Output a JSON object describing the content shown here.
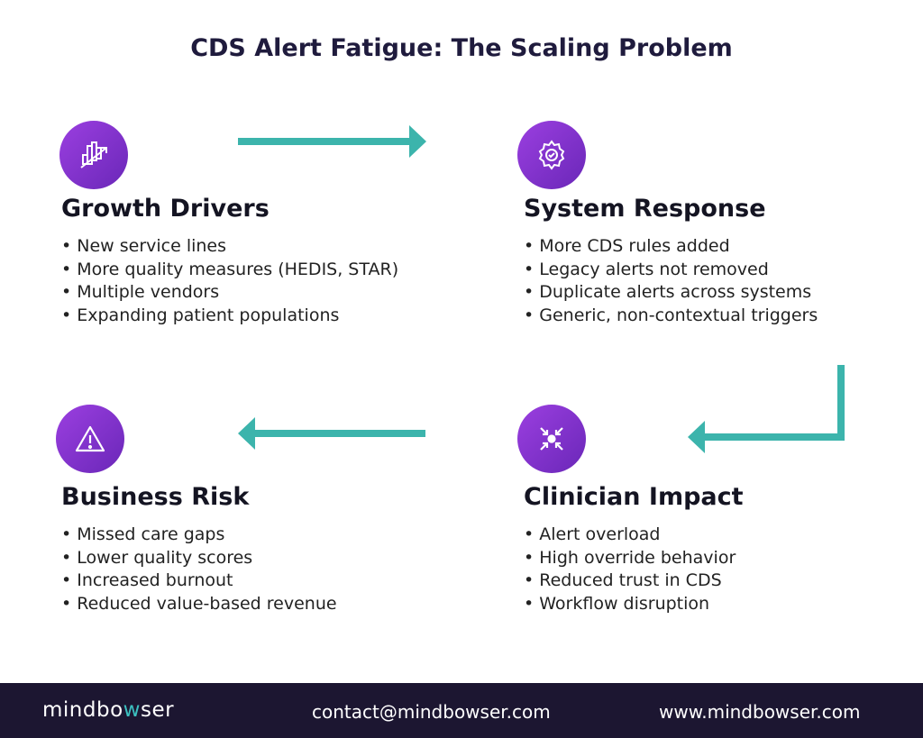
{
  "title": "CDS Alert Fatigue: The Scaling Problem",
  "colors": {
    "accent": "#3cb4ac",
    "icon_gradient": [
      "#9b3fe0",
      "#6a27b8"
    ],
    "footer_bg": "#1c1631"
  },
  "blocks": [
    {
      "icon": "chart-growth-icon",
      "heading": "Growth Drivers",
      "items": [
        "New service lines",
        "More quality measures (HEDIS, STAR)",
        "Multiple vendors",
        "Expanding patient populations"
      ]
    },
    {
      "icon": "gear-check-icon",
      "heading": "System Response",
      "items": [
        "More CDS rules added",
        "Legacy alerts not removed",
        "Duplicate alerts across systems",
        "Generic, non-contextual triggers"
      ]
    },
    {
      "icon": "warning-icon",
      "heading": "Business Risk",
      "items": [
        "Missed care gaps",
        "Lower quality scores",
        "Increased burnout",
        "Reduced value-based revenue"
      ]
    },
    {
      "icon": "arrows-converge-icon",
      "heading": "Clinician Impact",
      "items": [
        "Alert overload",
        "High override behavior",
        "Reduced trust in CDS",
        "Workflow disruption"
      ]
    }
  ],
  "footer": {
    "logo_pre": "mindbo",
    "logo_w": "w",
    "logo_post": "ser",
    "email": "contact@mindbowser.com",
    "website": "www.mindbowser.com"
  }
}
